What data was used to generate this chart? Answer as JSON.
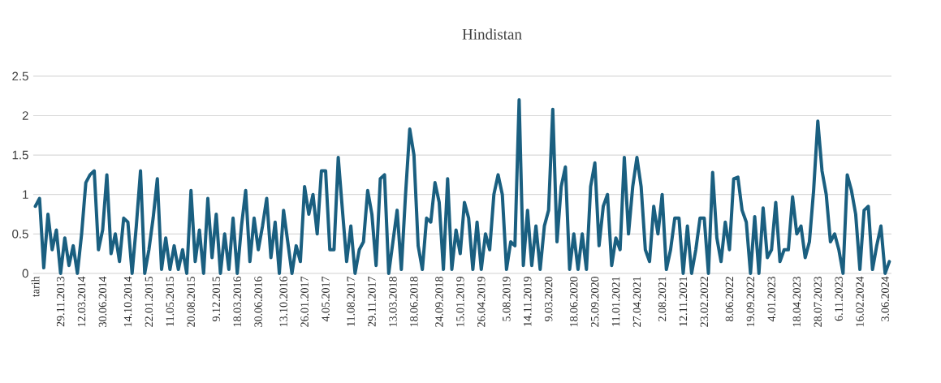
{
  "chart_data": {
    "type": "line",
    "title": "Hindistan",
    "categories": [
      "tarih",
      null,
      null,
      null,
      null,
      null,
      "29.11.2013",
      null,
      null,
      null,
      null,
      "12.03.2014",
      null,
      null,
      null,
      null,
      "30.06.2014",
      null,
      null,
      null,
      null,
      null,
      "14.10.2014",
      null,
      null,
      null,
      null,
      "22.01.2015",
      null,
      null,
      null,
      null,
      "11.05.2015",
      null,
      null,
      null,
      null,
      "20.08.2015",
      null,
      null,
      null,
      null,
      null,
      "9.12.2015",
      null,
      null,
      null,
      null,
      "18.03.2016",
      null,
      null,
      null,
      null,
      "30.06.2016",
      null,
      null,
      null,
      null,
      null,
      "13.10.2016",
      null,
      null,
      null,
      null,
      "26.01.2017",
      null,
      null,
      null,
      null,
      "4.05.2017",
      null,
      null,
      null,
      null,
      null,
      "11.08.2017",
      null,
      null,
      null,
      null,
      "29.11.2017",
      null,
      null,
      null,
      null,
      "13.03.2018",
      null,
      null,
      null,
      null,
      "18.06.2018",
      null,
      null,
      null,
      null,
      null,
      "24.09.2018",
      null,
      null,
      null,
      null,
      "15.01.2019",
      null,
      null,
      null,
      null,
      "26.04.2019",
      null,
      null,
      null,
      null,
      null,
      "5.08.2019",
      null,
      null,
      null,
      null,
      "14.11.2019",
      null,
      null,
      null,
      null,
      "9.03.2020",
      null,
      null,
      null,
      null,
      null,
      "18.06.2020",
      null,
      null,
      null,
      null,
      "25.09.2020",
      null,
      null,
      null,
      null,
      "11.01.2021",
      null,
      null,
      null,
      null,
      "27.04.2021",
      null,
      null,
      null,
      null,
      null,
      "2.08.2021",
      null,
      null,
      null,
      null,
      "12.11.2021",
      null,
      null,
      null,
      null,
      "23.02.2022",
      null,
      null,
      null,
      null,
      null,
      "8.06.2022",
      null,
      null,
      null,
      null,
      "19.09.2022",
      null,
      null,
      null,
      null,
      "4.01.2023",
      null,
      null,
      null,
      null,
      null,
      "18.04.2023",
      null,
      null,
      null,
      null,
      "28.07.2023",
      null,
      null,
      null,
      null,
      "6.11.2023",
      null,
      null,
      null,
      null,
      "16.02.2024",
      null,
      null,
      null,
      null,
      null,
      "3.06.2024",
      null
    ],
    "series": [
      {
        "color": "#1a5f80",
        "values": [
          0.85,
          0.95,
          0.07,
          0.75,
          0.3,
          0.55,
          0.0,
          0.45,
          0.1,
          0.35,
          0.0,
          0.5,
          1.15,
          1.25,
          1.3,
          0.3,
          0.55,
          1.25,
          0.25,
          0.5,
          0.15,
          0.7,
          0.65,
          0.0,
          0.6,
          1.3,
          0.0,
          0.3,
          0.7,
          1.2,
          0.05,
          0.45,
          0.05,
          0.35,
          0.05,
          0.3,
          0.0,
          1.05,
          0.15,
          0.55,
          0.0,
          0.95,
          0.2,
          0.75,
          0.0,
          0.5,
          0.05,
          0.7,
          0.0,
          0.6,
          1.05,
          0.15,
          0.7,
          0.3,
          0.6,
          0.95,
          0.2,
          0.65,
          0.0,
          0.8,
          0.4,
          0.0,
          0.35,
          0.15,
          1.1,
          0.75,
          1.0,
          0.5,
          1.3,
          1.3,
          0.3,
          0.3,
          1.47,
          0.8,
          0.15,
          0.6,
          0.0,
          0.3,
          0.4,
          1.05,
          0.75,
          0.1,
          1.2,
          1.25,
          0.0,
          0.4,
          0.8,
          0.05,
          1.0,
          1.83,
          1.5,
          0.35,
          0.05,
          0.7,
          0.65,
          1.15,
          0.9,
          0.05,
          1.2,
          0.05,
          0.55,
          0.25,
          0.9,
          0.7,
          0.05,
          0.65,
          0.05,
          0.5,
          0.3,
          1.0,
          1.25,
          1.0,
          0.05,
          0.4,
          0.35,
          2.2,
          0.1,
          0.8,
          0.1,
          0.6,
          0.05,
          0.6,
          0.8,
          2.08,
          0.4,
          1.1,
          1.35,
          0.05,
          0.5,
          0.05,
          0.5,
          0.05,
          1.1,
          1.4,
          0.35,
          0.85,
          1.0,
          0.1,
          0.45,
          0.3,
          1.47,
          0.5,
          1.1,
          1.47,
          1.1,
          0.3,
          0.15,
          0.85,
          0.5,
          1.0,
          0.05,
          0.3,
          0.7,
          0.7,
          0.0,
          0.6,
          0.0,
          0.3,
          0.7,
          0.7,
          0.0,
          1.28,
          0.45,
          0.15,
          0.65,
          0.3,
          1.2,
          1.22,
          0.8,
          0.65,
          0.0,
          0.72,
          0.0,
          0.83,
          0.2,
          0.3,
          0.9,
          0.15,
          0.3,
          0.3,
          0.97,
          0.5,
          0.6,
          0.2,
          0.4,
          1.05,
          1.93,
          1.3,
          1.0,
          0.4,
          0.5,
          0.3,
          0.0,
          1.25,
          1.05,
          0.75,
          0.05,
          0.8,
          0.85,
          0.05,
          0.35,
          0.6,
          0.0,
          0.15
        ]
      }
    ],
    "ylim": [
      0,
      2.5
    ],
    "yticks": [
      0,
      0.5,
      1,
      1.5,
      2,
      2.5
    ],
    "grid": "y",
    "marker": "none",
    "line_style": "solid"
  }
}
